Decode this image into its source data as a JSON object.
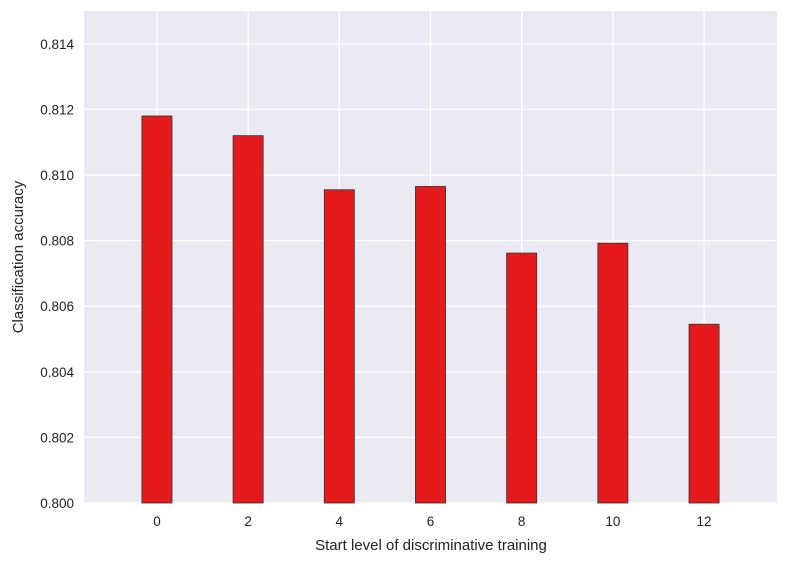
{
  "chart_data": {
    "type": "bar",
    "title": "",
    "xlabel": "Start level of discriminative training",
    "ylabel": "Classification accuracy",
    "categories": [
      "0",
      "2",
      "4",
      "6",
      "8",
      "10",
      "12"
    ],
    "x": [
      0,
      2,
      4,
      6,
      8,
      10,
      12
    ],
    "values": [
      0.8118,
      0.8112,
      0.80955,
      0.80965,
      0.80762,
      0.80792,
      0.80545
    ],
    "xlim": [
      -1.6,
      13.6
    ],
    "ylim": [
      0.8,
      0.815
    ],
    "yticks": [
      "0.800",
      "0.802",
      "0.804",
      "0.806",
      "0.808",
      "0.810",
      "0.812",
      "0.814"
    ],
    "grid": true,
    "bar_color": "#e41a1c",
    "background_color": "#eaeaf2",
    "grid_color": "#ffffff"
  }
}
